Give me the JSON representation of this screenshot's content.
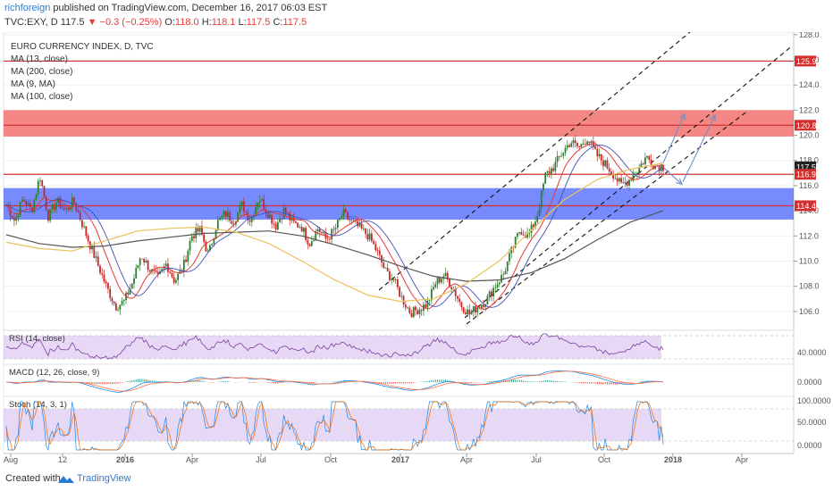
{
  "header": {
    "author": "richforeign",
    "published": " published on TradingView.com, December 16, 2017 06:03 EST",
    "ticker": "TVC:EXY, D",
    "last": "117.5",
    "change": "−0.3 (−0.25%)",
    "o_label": "O:",
    "o_val": "118.0",
    "h_label": "H:",
    "h_val": "118.1",
    "l_label": "L:",
    "l_val": "117.5",
    "c_label": "C:",
    "c_val": "117.5"
  },
  "legend": {
    "title": "EURO CURRENCY INDEX, D, TVC",
    "ma1": "MA (13, close)",
    "ma2": "MA (200, close)",
    "ma3": "MA (9, MA)",
    "ma4": "MA (100, close)"
  },
  "footer": {
    "created_with": "Created with",
    "brand": "TradingView"
  },
  "colors": {
    "red_zone": "#ef5350",
    "blue_zone": "#3d5afe",
    "ma_red": "#e53935",
    "ma_blue": "#3f51b5",
    "ma_200": "#555555",
    "ma_100": "#e8c35a",
    "candle_up": "#2e7d32",
    "candle_down": "#c62828",
    "osc_band": "#d7bff0"
  },
  "chart_data": [
    {
      "type": "candlestick",
      "title": "EURO CURRENCY INDEX, D, TVC",
      "x_ticks": [
        "Aug",
        "12",
        "2016",
        "Apr",
        "Jul",
        "Oct",
        "2017",
        "Apr",
        "Jul",
        "Oct",
        "2018",
        "Apr"
      ],
      "y_ticks": [
        106.0,
        108.0,
        110.0,
        112.0,
        114.0,
        116.0,
        118.0,
        120.0,
        122.0,
        124.0,
        126.0,
        128.0
      ],
      "y_tick_labels": [
        "106.0",
        "108.0",
        "110.0",
        "112.0",
        "114.0",
        "116.0",
        "118.0",
        "120.0",
        "122.0",
        "124.0",
        "126.0",
        "128.0"
      ],
      "ylim": [
        104.5,
        128.2
      ],
      "series": [
        {
          "name": "Price",
          "values": [
            114.5,
            113.2,
            115.0,
            114.0,
            116.8,
            113.5,
            114.8,
            114.0,
            114.8,
            113.0,
            111.2,
            109.5,
            107.8,
            106.4,
            106.8,
            108.3,
            110.5,
            109.4,
            108.6,
            109.8,
            108.4,
            109.5,
            112.0,
            112.5,
            110.5,
            113.0,
            113.8,
            113.2,
            114.5,
            113.2,
            115.1,
            113.9,
            112.8,
            114.1,
            113.0,
            112.8,
            111.4,
            112.6,
            111.7,
            112.5,
            113.8,
            113.1,
            112.6,
            112.0,
            110.8,
            109.2,
            108.5,
            107.0,
            105.9,
            106.2,
            106.6,
            108.3,
            108.9,
            107.9,
            106.5,
            105.8,
            106.4,
            106.9,
            108.0,
            108.9,
            110.8,
            112.5,
            112.0,
            113.5,
            116.8,
            117.5,
            118.6,
            119.5,
            119.0,
            119.8,
            118.5,
            117.8,
            117.0,
            116.0,
            116.5,
            117.3,
            118.3,
            117.6,
            117.5
          ]
        },
        {
          "name": "MA (200, close)",
          "values": [
            112.1,
            111.4,
            111.1,
            111.2,
            111.6,
            111.9,
            112.2,
            112.3,
            112.4,
            112.0,
            111.3,
            110.5,
            109.6,
            108.8,
            108.4,
            108.5,
            109.1,
            110.2,
            111.7,
            113.1,
            114.0
          ]
        },
        {
          "name": "MA (100, close)",
          "values": [
            111.5,
            111.0,
            110.8,
            111.6,
            112.4,
            112.6,
            112.7,
            112.3,
            111.4,
            110.0,
            108.5,
            107.3,
            106.8,
            107.0,
            108.2,
            110.0,
            112.5,
            114.9,
            116.5,
            117.3,
            117.8
          ]
        }
      ],
      "horizontal_levels": [
        125.9,
        120.8,
        116.9,
        114.4
      ],
      "last_price": 117.5,
      "price_labels": [
        "125.9",
        "120.8",
        "117.5",
        "116.9",
        "114.4"
      ],
      "zones": [
        {
          "from": 119.9,
          "to": 122.0,
          "color": "red"
        },
        {
          "from": 113.3,
          "to": 115.8,
          "color": "blue"
        }
      ]
    },
    {
      "type": "line",
      "title": "RSI (14, close)",
      "y_tick_labels": [
        "40.0000"
      ],
      "band": [
        30,
        70
      ]
    },
    {
      "type": "line",
      "title": "MACD (12, 26, close, 9)",
      "y_tick_labels": [
        "0.0000"
      ]
    },
    {
      "type": "line",
      "title": "Stoch (14, 3, 1)",
      "y_tick_labels": [
        "100.0000",
        "50.0000",
        "0.0000"
      ],
      "band": [
        20,
        80
      ]
    }
  ]
}
